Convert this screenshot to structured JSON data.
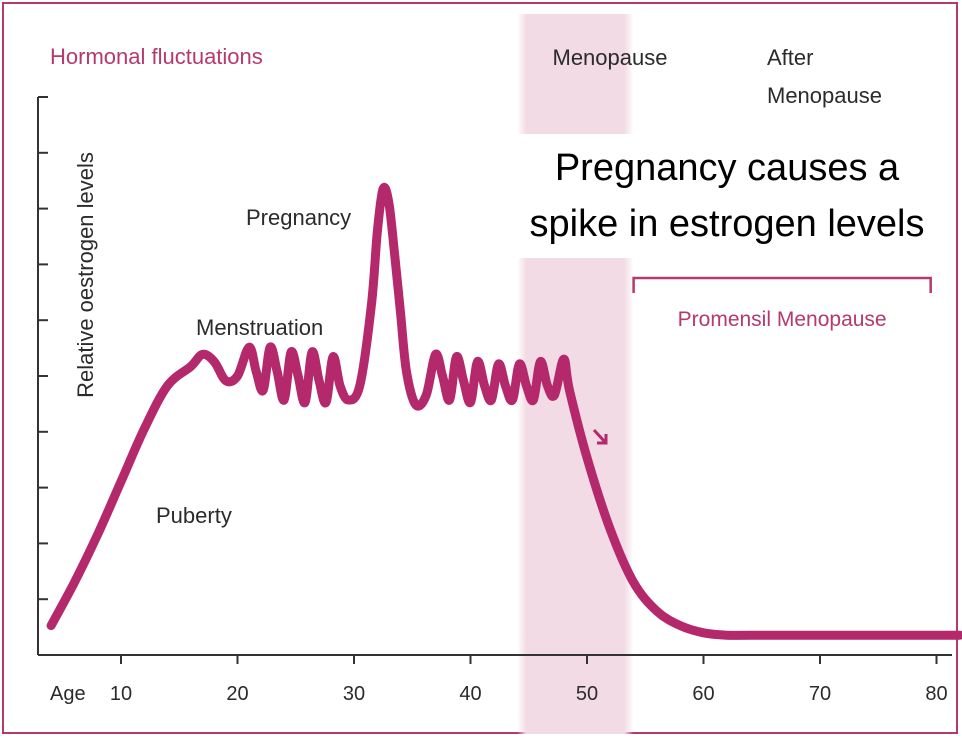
{
  "chart_data": {
    "type": "line",
    "title": "Hormonal fluctuations",
    "ylabel": "Relative oestrogen levels",
    "x_axis_label": "Age",
    "x_ticks": [
      10,
      20,
      30,
      40,
      50,
      60,
      70,
      80
    ],
    "xlim": [
      4,
      82
    ],
    "ylim": [
      0,
      10
    ],
    "y_tick_count": 10,
    "region_labels": {
      "menopause": "Menopause",
      "after_line1": "After",
      "after_line2": "Menopause"
    },
    "menopause_band": {
      "x_start": 44,
      "x_end": 54
    },
    "annotations": [
      {
        "id": "puberty",
        "text": "Puberty"
      },
      {
        "id": "menstruation",
        "text": "Menstruation"
      },
      {
        "id": "pregnancy",
        "text": "Pregnancy"
      }
    ],
    "callout": {
      "line1": "Pregnancy causes a",
      "line2": "spike in estrogen levels"
    },
    "bracket": {
      "label": "Promensil Menopause",
      "x_start": 54,
      "x_end": 79.5
    },
    "series": [
      {
        "values": [
          [
            4,
            0.3
          ],
          [
            6,
            1.2
          ],
          [
            8,
            2.2
          ],
          [
            10,
            3.3
          ],
          [
            12,
            4.4
          ],
          [
            14,
            5.3
          ],
          [
            16,
            5.7
          ],
          [
            17,
            5.95
          ],
          [
            18,
            5.8
          ],
          [
            19,
            5.4
          ],
          [
            20,
            5.5
          ],
          [
            21,
            6.1
          ],
          [
            21.6,
            5.6
          ],
          [
            22.2,
            5.2
          ],
          [
            22.8,
            6.1
          ],
          [
            23.4,
            5.6
          ],
          [
            24.0,
            5.0
          ],
          [
            24.6,
            6.0
          ],
          [
            25.2,
            5.5
          ],
          [
            25.8,
            4.95
          ],
          [
            26.4,
            6.0
          ],
          [
            27.0,
            5.4
          ],
          [
            27.6,
            4.95
          ],
          [
            28.2,
            5.9
          ],
          [
            28.8,
            5.3
          ],
          [
            29.5,
            5.0
          ],
          [
            30.5,
            5.3
          ],
          [
            31.5,
            7.0
          ],
          [
            32.0,
            8.5
          ],
          [
            32.5,
            9.4
          ],
          [
            33.0,
            9.1
          ],
          [
            33.5,
            8.0
          ],
          [
            34.0,
            6.8
          ],
          [
            34.5,
            5.6
          ],
          [
            35.3,
            4.9
          ],
          [
            36.2,
            5.1
          ],
          [
            37.0,
            5.95
          ],
          [
            37.6,
            5.5
          ],
          [
            38.2,
            5.0
          ],
          [
            38.8,
            5.9
          ],
          [
            39.4,
            5.4
          ],
          [
            40.0,
            4.95
          ],
          [
            40.6,
            5.8
          ],
          [
            41.2,
            5.3
          ],
          [
            41.8,
            5.0
          ],
          [
            42.4,
            5.75
          ],
          [
            43.0,
            5.3
          ],
          [
            43.6,
            5.0
          ],
          [
            44.2,
            5.75
          ],
          [
            44.8,
            5.3
          ],
          [
            45.4,
            5.0
          ],
          [
            46.0,
            5.8
          ],
          [
            46.6,
            5.3
          ],
          [
            47.2,
            5.1
          ],
          [
            48.0,
            5.85
          ],
          [
            48.5,
            5.2
          ],
          [
            50,
            3.8
          ],
          [
            52,
            2.3
          ],
          [
            54,
            1.2
          ],
          [
            56,
            0.6
          ],
          [
            58,
            0.3
          ],
          [
            60,
            0.15
          ],
          [
            62,
            0.1
          ],
          [
            64,
            0.1
          ],
          [
            70,
            0.1
          ],
          [
            82,
            0.1
          ]
        ]
      }
    ]
  },
  "colors": {
    "accent": "#b5386f",
    "curve": "#b4286c",
    "band": "#f2dbe4",
    "axis": "#333333",
    "text": "#2b2b2b"
  }
}
